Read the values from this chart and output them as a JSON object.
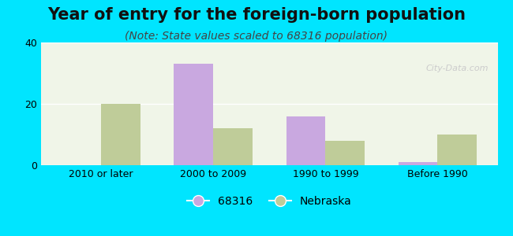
{
  "categories": [
    "2010 or later",
    "2000 to 2009",
    "1990 to 1999",
    "Before 1990"
  ],
  "values_68316": [
    0,
    33,
    16,
    1
  ],
  "values_nebraska": [
    20,
    12,
    8,
    10
  ],
  "color_68316": "#c9a8e0",
  "color_nebraska": "#bfcc99",
  "title": "Year of entry for the foreign-born population",
  "subtitle": "(Note: State values scaled to 68316 population)",
  "legend_68316": "68316",
  "legend_nebraska": "Nebraska",
  "ylim": [
    0,
    40
  ],
  "yticks": [
    0,
    20,
    40
  ],
  "background_outer": "#00e5ff",
  "background_inner": "#f0f5e8",
  "title_fontsize": 15,
  "subtitle_fontsize": 10
}
